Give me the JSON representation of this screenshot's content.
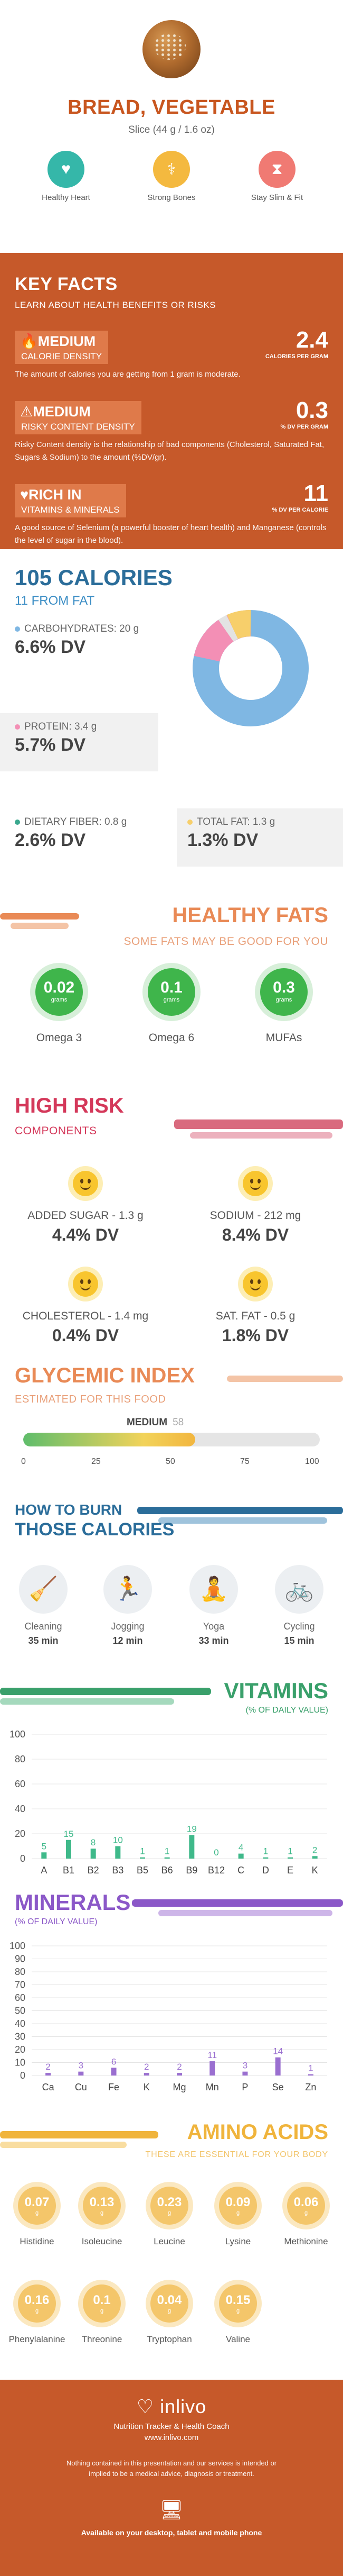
{
  "header": {
    "title": "BREAD, VEGETABLE",
    "serving": "Slice (44 g / 1.6 oz)",
    "benefits": [
      {
        "label": "Healthy Heart",
        "icon": "heart-icon",
        "color": "#35b7a9"
      },
      {
        "label": "Strong Bones",
        "icon": "bone-icon",
        "color": "#f4b93f"
      },
      {
        "label": "Stay Slim & Fit",
        "icon": "waist-icon",
        "color": "#f07a73"
      }
    ]
  },
  "key_facts": {
    "title": "KEY FACTS",
    "subtitle": "LEARN ABOUT HEALTH BENEFITS OR RISKS",
    "items": [
      {
        "level": "MEDIUM",
        "name": "CALORIE DENSITY",
        "value": "2.4",
        "unit": "CALORIES PER GRAM",
        "desc": "The amount of calories you are getting from 1 gram is moderate.",
        "icon": "flame-icon"
      },
      {
        "level": "MEDIUM",
        "name": "RISKY CONTENT DENSITY",
        "value": "0.3",
        "unit": "% DV PER GRAM",
        "desc": "Risky Content density is the relationship of bad components (Cholesterol, Saturated Fat, Sugars & Sodium) to the amount (%DV/gr).",
        "icon": "warning-icon"
      },
      {
        "level": "RICH  IN",
        "name": "VITAMINS & MINERALS",
        "value": "11",
        "unit": "% DV PER CALORIE",
        "desc": "A good source of Selenium (a powerful booster of heart health) and Manganese (controls the level of sugar in the blood).",
        "icon": "heart-icon"
      }
    ]
  },
  "calories": {
    "title": "105 CALORIES",
    "from_fat": "11 FROM FAT",
    "carbs_label": "CARBOHYDRATES: 20 g",
    "carbs_value": "6.6% DV",
    "protein_label": "PROTEIN: 3.4 g",
    "protein_value": "5.7% DV",
    "fiber_label": "DIETARY FIBER: 0.8 g",
    "fiber_value": "2.6% DV",
    "fat_label": "TOTAL FAT: 1.3 g",
    "fat_value": "1.3% DV",
    "colors": {
      "carbs": "#7fb7e3",
      "protein": "#f38fb5",
      "fiber": "#3aa88e",
      "fat": "#f7cf6b"
    }
  },
  "healthy_fats": {
    "title": "HEALTHY FATS",
    "subtitle": "SOME FATS MAY BE GOOD FOR YOU",
    "unit": "grams",
    "items": [
      {
        "value": "0.02",
        "name": "Omega 3"
      },
      {
        "value": "0.1",
        "name": "Omega 6"
      },
      {
        "value": "0.3",
        "name": "MUFAs"
      }
    ]
  },
  "high_risk": {
    "title": "HIGH RISK",
    "subtitle": "COMPONENTS",
    "items": [
      {
        "label": "ADDED SUGAR - 1.3 g",
        "value": "4.4% DV"
      },
      {
        "label": "SODIUM - 212 mg",
        "value": "8.4% DV"
      },
      {
        "label": "CHOLESTEROL - 1.4 mg",
        "value": "0.4% DV"
      },
      {
        "label": "SAT. FAT - 0.5 g",
        "value": "1.8% DV"
      }
    ]
  },
  "glycemic": {
    "title": "GLYCEMIC INDEX",
    "subtitle": "ESTIMATED FOR THIS FOOD",
    "level": "MEDIUM",
    "value": 58,
    "ticks": [
      "0",
      "25",
      "50",
      "75",
      "100"
    ]
  },
  "burn": {
    "title1": "HOW TO BURN",
    "title2": "THOSE CALORIES",
    "activities": [
      {
        "name": "Cleaning",
        "time": "35 min",
        "icon": "cleaning-icon"
      },
      {
        "name": "Jogging",
        "time": "12 min",
        "icon": "running-icon"
      },
      {
        "name": "Yoga",
        "time": "33 min",
        "icon": "yoga-icon"
      },
      {
        "name": "Cycling",
        "time": "15 min",
        "icon": "bicycle-icon"
      }
    ]
  },
  "vitamins": {
    "title": "VITAMINS",
    "subtitle": "(% OF DAILY VALUE)"
  },
  "minerals": {
    "title": "MINERALS",
    "subtitle": "(% OF DAILY VALUE)"
  },
  "chart_data": [
    {
      "type": "bar",
      "categories": [
        "A",
        "B1",
        "B2",
        "B3",
        "B5",
        "B6",
        "B9",
        "B12",
        "C",
        "D",
        "E",
        "K"
      ],
      "values": [
        5,
        15,
        8,
        10,
        1,
        1,
        19,
        0,
        4,
        1,
        1,
        2
      ],
      "ylim": [
        0,
        100
      ],
      "yticks": [
        0,
        20,
        40,
        60,
        80,
        100
      ],
      "title": "VITAMINS",
      "ylabel": "(% OF DAILY VALUE)",
      "color": "#3fb98a"
    },
    {
      "type": "bar",
      "categories": [
        "Ca",
        "Cu",
        "Fe",
        "K",
        "Mg",
        "Mn",
        "P",
        "Se",
        "Zn"
      ],
      "values": [
        2,
        3,
        6,
        2,
        2,
        11,
        3,
        14,
        1
      ],
      "ylim": [
        0,
        100
      ],
      "yticks": [
        0,
        10,
        20,
        30,
        40,
        50,
        60,
        70,
        80,
        90,
        100
      ],
      "title": "MINERALS",
      "ylabel": "(% OF DAILY VALUE)",
      "color": "#9a6fd0"
    }
  ],
  "amino": {
    "title": "AMINO ACIDS",
    "subtitle": "THESE ARE ESSENTIAL FOR YOUR BODY",
    "unit": "g",
    "items": [
      {
        "value": "0.07",
        "name": "Histidine"
      },
      {
        "value": "0.13",
        "name": "Isoleucine"
      },
      {
        "value": "0.23",
        "name": "Leucine"
      },
      {
        "value": "0.09",
        "name": "Lysine"
      },
      {
        "value": "0.06",
        "name": "Methionine"
      },
      {
        "value": "0.16",
        "name": "Phenylalanine"
      },
      {
        "value": "0.1",
        "name": "Threonine"
      },
      {
        "value": "0.04",
        "name": "Tryptophan"
      },
      {
        "value": "0.15",
        "name": "Valine"
      }
    ]
  },
  "footer": {
    "brand": "inlivo",
    "tagline": "Nutrition Tracker & Health Coach",
    "url": "www.inlivo.com",
    "disclaimer": "Nothing contained in this presentation and our services is intended or implied to be a medical advice, diagnosis or treatment.",
    "available": "Available on your desktop, tablet and mobile phone"
  }
}
